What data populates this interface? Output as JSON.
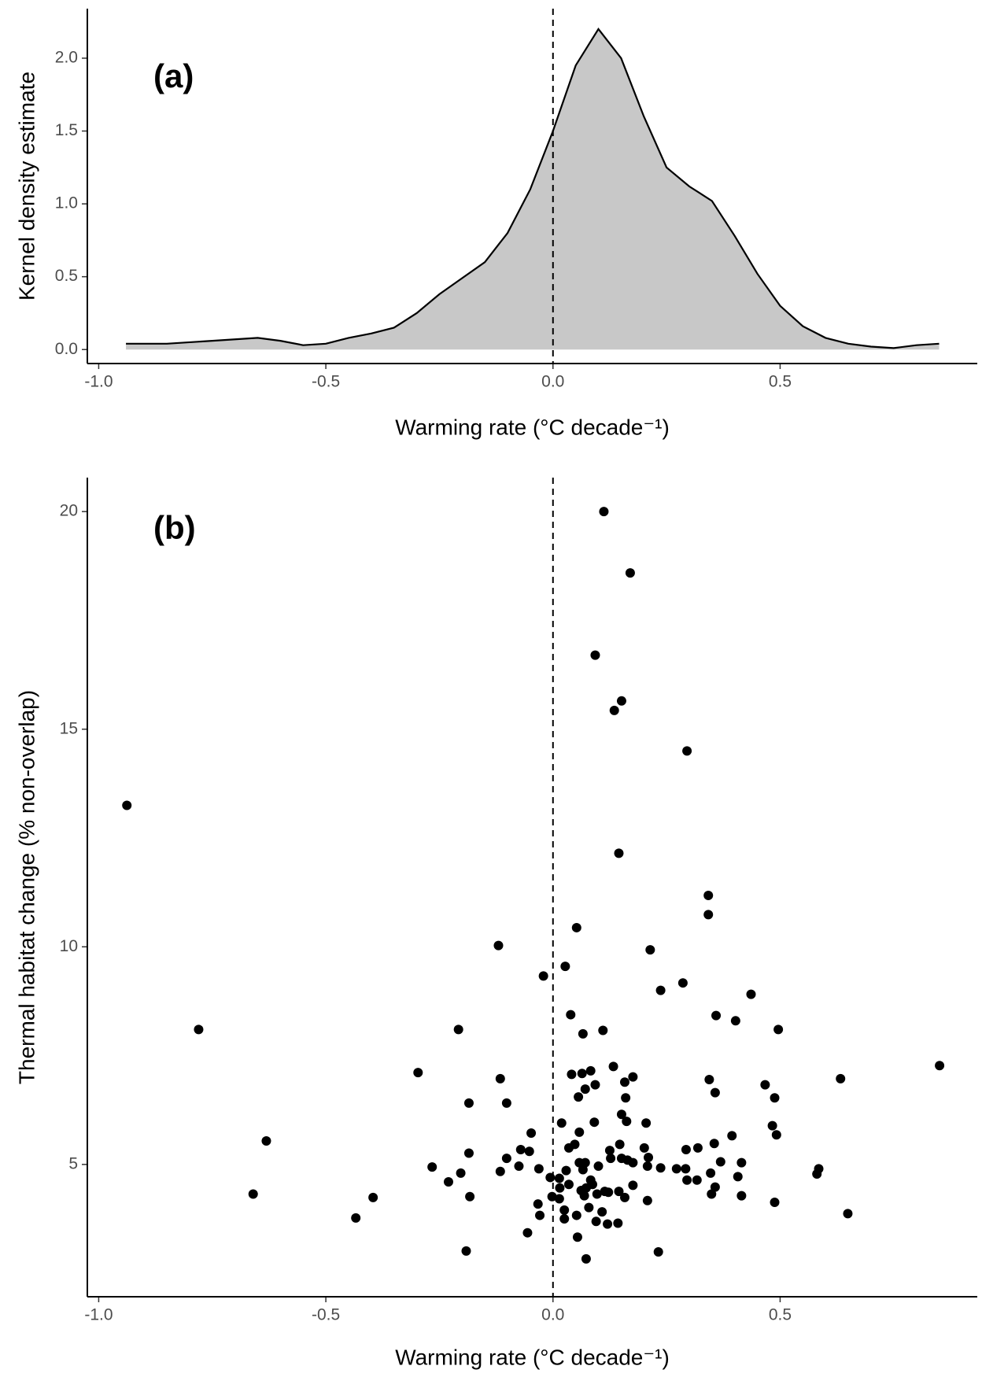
{
  "chart_data": [
    {
      "type": "area",
      "panel_label": "(a)",
      "y_label": "Kernel density estimate",
      "x_label": "Warming rate (°C decade⁻¹)",
      "x": [
        -0.94,
        -0.85,
        -0.75,
        -0.65,
        -0.6,
        -0.55,
        -0.5,
        -0.45,
        -0.4,
        -0.35,
        -0.3,
        -0.25,
        -0.2,
        -0.15,
        -0.1,
        -0.05,
        0,
        0.05,
        0.1,
        0.15,
        0.2,
        0.25,
        0.3,
        0.35,
        0.4,
        0.45,
        0.5,
        0.55,
        0.6,
        0.65,
        0.7,
        0.75,
        0.8,
        0.85
      ],
      "y": [
        0.04,
        0.04,
        0.06,
        0.08,
        0.06,
        0.03,
        0.04,
        0.08,
        0.11,
        0.15,
        0.25,
        0.38,
        0.49,
        0.6,
        0.8,
        1.1,
        1.5,
        1.95,
        2.2,
        2.0,
        1.6,
        1.25,
        1.12,
        1.02,
        0.78,
        0.52,
        0.3,
        0.16,
        0.08,
        0.04,
        0.02,
        0.01,
        0.03,
        0.04
      ],
      "fill": "#c8c8c8",
      "color": "#000000",
      "xlim": [
        -1.025,
        0.934
      ],
      "ylim": [
        -0.096,
        2.34
      ],
      "xticks": [
        {
          "value": -1,
          "label": "-1.0"
        },
        {
          "value": -0.5,
          "label": "-0.5"
        },
        {
          "value": 0,
          "label": "0.0"
        },
        {
          "value": 0.5,
          "label": "0.5"
        }
      ],
      "yticks": [
        {
          "value": 0,
          "label": "0.0"
        },
        0.5,
        {
          "value": 1,
          "label": "1.0"
        },
        1.5,
        {
          "value": 2,
          "label": "2.0"
        }
      ],
      "vline": 0,
      "grid": false
    },
    {
      "type": "scatter",
      "panel_label": "(b)",
      "y_label": "Thermal habitat change (% non-overlap)",
      "x_label": "Warming rate (°C decade⁻¹)",
      "x": [
        0.112,
        0.17,
        0.093,
        0.151,
        0.135,
        0.295,
        -0.938,
        0.145,
        0.342,
        0.342,
        0.052,
        -0.12,
        0.214,
        0.027,
        -0.021,
        0.286,
        0.237,
        0.436,
        0.039,
        0.359,
        0.402,
        -0.78,
        -0.208,
        0.11,
        0.496,
        0.066,
        0.851,
        -0.297,
        0.083,
        0.133,
        0.041,
        0.064,
        0.176,
        -0.116,
        0.344,
        0.633,
        0.158,
        0.093,
        0.467,
        0.071,
        0.357,
        -0.185,
        -0.102,
        0.056,
        0.16,
        0.488,
        0.151,
        0.162,
        0.019,
        0.091,
        0.205,
        0.483,
        -0.048,
        0.394,
        0.492,
        -0.631,
        0.058,
        0.048,
        0.147,
        0.355,
        0.035,
        -0.071,
        -0.052,
        0.201,
        0.319,
        0.293,
        -0.185,
        0.125,
        -0.102,
        0.127,
        0.151,
        0.164,
        0.21,
        0.369,
        0.415,
        0.058,
        0.071,
        0.176,
        0.1,
        0.208,
        0.237,
        -0.031,
        0.066,
        0.272,
        -0.266,
        -0.075,
        0.029,
        0.292,
        0.585,
        -0.116,
        -0.203,
        0.347,
        0.581,
        -0.006,
        0.014,
        0.407,
        0.083,
        0.295,
        0.317,
        -0.23,
        0.035,
        0.087,
        0.176,
        0.357,
        0.015,
        0.073,
        0.062,
        0.145,
        0.114,
        0.097,
        0.122,
        0.069,
        -0.66,
        0.349,
        0.415,
        -0.002,
        -0.183,
        0.158,
        -0.396,
        0.014,
        0.208,
        0.488,
        -0.033,
        0.079,
        0.025,
        -0.029,
        0.108,
        0.052,
        0.649,
        -0.434,
        0.025,
        0.095,
        0.12,
        0.143,
        -0.056,
        0.054,
        -0.191,
        0.232,
        0.073
      ],
      "y": [
        20.0,
        18.59,
        16.7,
        15.65,
        15.43,
        14.5,
        13.25,
        12.15,
        11.18,
        10.74,
        10.44,
        10.03,
        9.93,
        9.55,
        9.33,
        9.17,
        9.0,
        8.91,
        8.44,
        8.42,
        8.3,
        8.1,
        8.1,
        8.08,
        8.1,
        8.0,
        7.27,
        7.11,
        7.15,
        7.25,
        7.07,
        7.09,
        7.01,
        6.97,
        6.95,
        6.97,
        6.89,
        6.83,
        6.83,
        6.73,
        6.65,
        6.41,
        6.41,
        6.55,
        6.53,
        6.53,
        6.15,
        5.99,
        5.95,
        5.97,
        5.95,
        5.89,
        5.72,
        5.66,
        5.68,
        5.54,
        5.74,
        5.46,
        5.46,
        5.48,
        5.38,
        5.34,
        5.3,
        5.38,
        5.38,
        5.34,
        5.26,
        5.32,
        5.14,
        5.14,
        5.14,
        5.1,
        5.16,
        5.06,
        5.04,
        5.04,
        5.04,
        5.04,
        4.96,
        4.96,
        4.92,
        4.9,
        4.88,
        4.9,
        4.94,
        4.96,
        4.86,
        4.9,
        4.9,
        4.84,
        4.8,
        4.8,
        4.78,
        4.7,
        4.68,
        4.72,
        4.64,
        4.64,
        4.64,
        4.6,
        4.54,
        4.54,
        4.52,
        4.48,
        4.46,
        4.46,
        4.4,
        4.38,
        4.38,
        4.32,
        4.36,
        4.28,
        4.32,
        4.32,
        4.28,
        4.26,
        4.26,
        4.24,
        4.24,
        4.21,
        4.17,
        4.13,
        4.09,
        4.01,
        3.95,
        3.83,
        3.91,
        3.83,
        3.87,
        3.77,
        3.75,
        3.69,
        3.63,
        3.65,
        3.43,
        3.33,
        3.01,
        2.99,
        2.83
      ],
      "color": "#000000",
      "xlim": [
        -1.025,
        0.934
      ],
      "ylim": [
        1.96,
        20.78
      ],
      "xticks": [
        {
          "value": -1,
          "label": "-1.0"
        },
        {
          "value": -0.5,
          "label": "-0.5"
        },
        {
          "value": 0,
          "label": "0.0"
        },
        {
          "value": 0.5,
          "label": "0.5"
        }
      ],
      "yticks": [
        5,
        10,
        15,
        20
      ],
      "vline": 0,
      "grid": false
    }
  ]
}
